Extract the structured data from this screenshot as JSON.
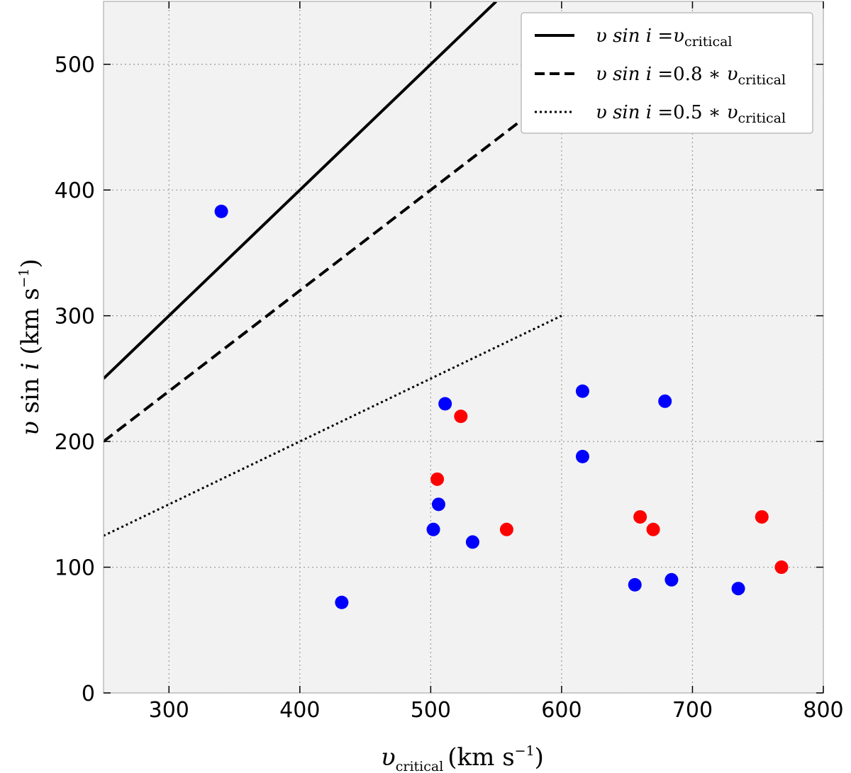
{
  "chart_data": {
    "type": "scatter",
    "xlabel": {
      "var": "υ",
      "sub": "critical",
      "units": "(km s",
      "exp": "−1",
      "close": ")"
    },
    "ylabel": {
      "var": "υ",
      "mid": " sin ",
      "ivar": "i",
      "units": " (km s",
      "exp": "−1",
      "close": ")"
    },
    "xlim": [
      250,
      800
    ],
    "ylim": [
      0,
      550
    ],
    "xticks": [
      "300",
      "400",
      "500",
      "600",
      "700",
      "800"
    ],
    "yticks": [
      "0",
      "100",
      "200",
      "300",
      "400",
      "500"
    ],
    "grid": true,
    "legend_position": "top-right",
    "lines": [
      {
        "label_pre": "υ sin ",
        "label_i": "i",
        "label_eq": " =",
        "label_factor": "",
        "label_var": "υ",
        "label_sub": "critical",
        "factor": 1.0,
        "x": [
          250,
          550
        ],
        "style": "solid"
      },
      {
        "label_pre": "υ sin ",
        "label_i": "i",
        "label_eq": " =",
        "label_factor": "0.8 ∗ ",
        "label_var": "υ",
        "label_sub": "critical",
        "factor": 0.8,
        "x": [
          250,
          600
        ],
        "style": "dashed"
      },
      {
        "label_pre": "υ sin ",
        "label_i": "i",
        "label_eq": " =",
        "label_factor": "0.5 ∗ ",
        "label_var": "υ",
        "label_sub": "critical",
        "factor": 0.5,
        "x": [
          250,
          600
        ],
        "style": "dotted"
      }
    ],
    "series": [
      {
        "color": "#0000ff",
        "points": [
          [
            340,
            383
          ],
          [
            432,
            72
          ],
          [
            502,
            130
          ],
          [
            506,
            150
          ],
          [
            511,
            230
          ],
          [
            532,
            120
          ],
          [
            616,
            240
          ],
          [
            616,
            188
          ],
          [
            656,
            86
          ],
          [
            679,
            232
          ],
          [
            684,
            90
          ],
          [
            735,
            83
          ]
        ]
      },
      {
        "color": "#ff0000",
        "points": [
          [
            505,
            170
          ],
          [
            523,
            220
          ],
          [
            558,
            130
          ],
          [
            660,
            140
          ],
          [
            670,
            130
          ],
          [
            753,
            140
          ],
          [
            768,
            100
          ]
        ]
      }
    ]
  }
}
